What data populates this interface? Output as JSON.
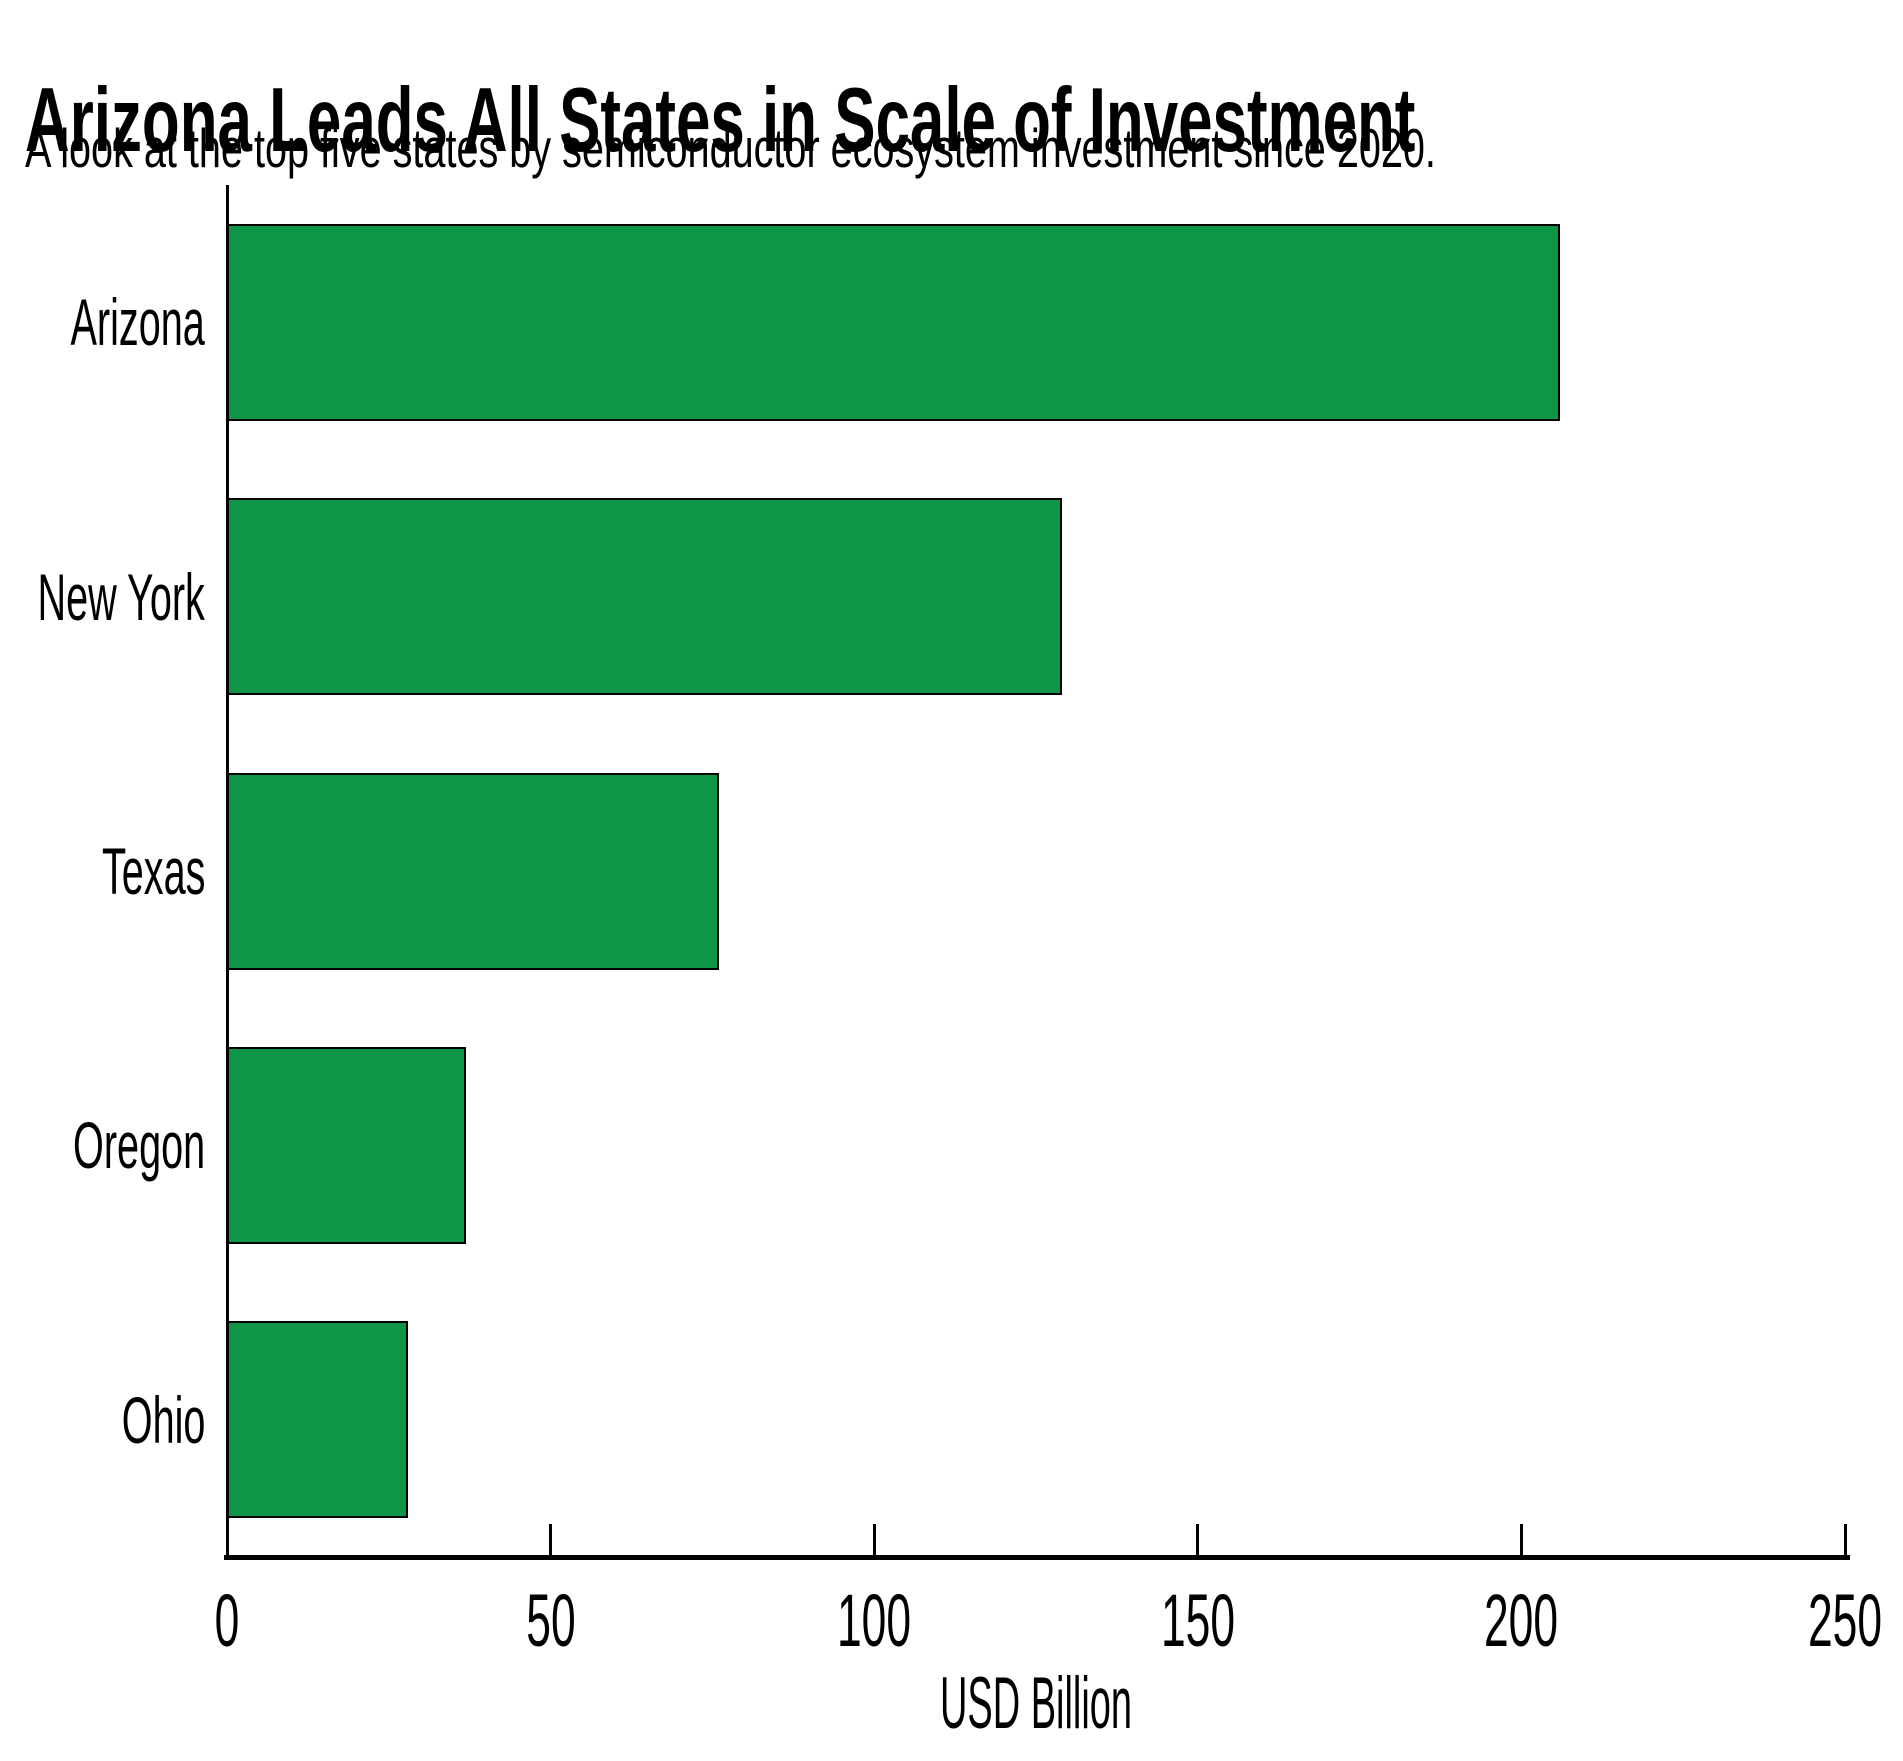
{
  "chart_data": {
    "type": "bar",
    "orientation": "horizontal",
    "title": "Arizona Leads All States in Scale of Investment",
    "subtitle": "A look at the top five states by semiconductor ecosystem investment since 2020.",
    "categories": [
      "Arizona",
      "New York",
      "Texas",
      "Oregon",
      "Ohio"
    ],
    "values": [
      206,
      129,
      76,
      37,
      28
    ],
    "xlabel": "USD Billion",
    "ylabel": "",
    "xlim": [
      0,
      250
    ],
    "xticks": [
      0,
      50,
      100,
      150,
      200,
      250
    ],
    "grid": false,
    "legend": "none",
    "bar_color": "#0E9648",
    "bar_edge_color": "#000000",
    "axis_color": "#000000",
    "background_color": "#FFFFFF"
  }
}
